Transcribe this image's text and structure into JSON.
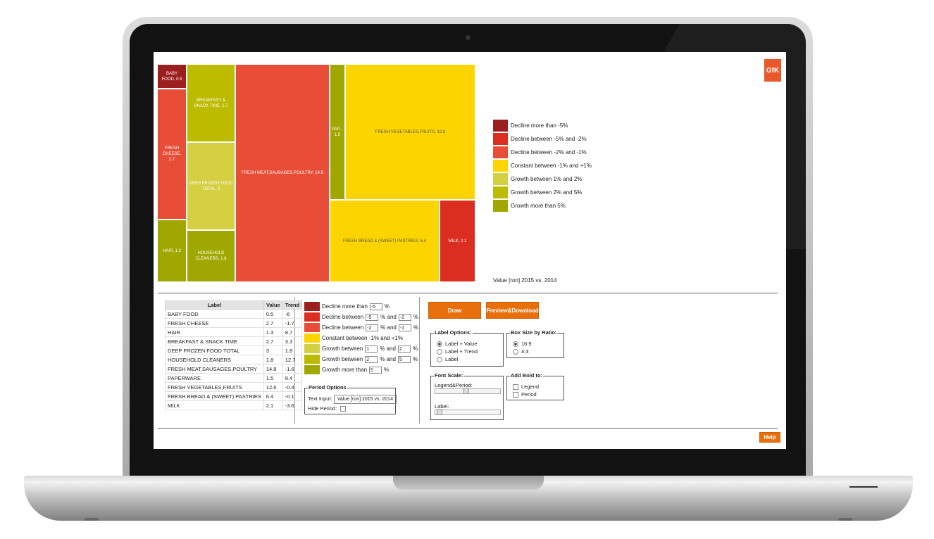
{
  "brand": {
    "logo": "GfK",
    "accent": "#e9582a",
    "button_color": "#e8700c"
  },
  "legend_colors": [
    "#9c1f1f",
    "#dc2e20",
    "#e84d38",
    "#fcd400",
    "#d4d042",
    "#bdbb00",
    "#a0a800"
  ],
  "treemap": {
    "tiles": [
      {
        "label": "BABY FOOD, 0.5",
        "color": "#9c1f1f"
      },
      {
        "label": "FRESH CHEESE, 2.7",
        "color": "#e84d38"
      },
      {
        "label": "HAIR, 1.3",
        "color": "#a0a800"
      },
      {
        "label": "BREAKFAST & SNACK TIME, 2.7",
        "color": "#bdbb00"
      },
      {
        "label": "DEEP FROZEN FOOD TOTAL, 3",
        "color": "#d4d042"
      },
      {
        "label": "HOUSEHOLD CLEANERS, 1.8",
        "color": "#a0a800"
      },
      {
        "label": "FRESH MEAT,SAUSAGES,POULTRY, 14.8",
        "color": "#e84d38"
      },
      {
        "label": "PAP... 1.5",
        "color": "#a0a800"
      },
      {
        "label": "FRESH VEGETABLES,FRUITS, 12.6",
        "color": "#fcd400"
      },
      {
        "label": "FRESH BREAD & (SWEET) PASTRIES, 6.4",
        "color": "#fcd400"
      },
      {
        "label": "MILK, 2.1",
        "color": "#dc2e20"
      }
    ]
  },
  "legend": [
    "Decline more than -5%",
    "Decline between -5% and -2%",
    "Decline between -2% and -1%",
    "Constant between -1% and +1%",
    "Growth between 1% and 2%",
    "Growth between 2% and 5%",
    "Growth more than 5%"
  ],
  "period_label": "Value [ron] 2015 vs. 2014",
  "table": {
    "headers": [
      "Label",
      "Value",
      "Trend"
    ],
    "rows": [
      [
        "BABY FOOD",
        "0.5",
        "-6"
      ],
      [
        "FRESH CHEESE",
        "2.7",
        "-1.7"
      ],
      [
        "HAIR",
        "1.3",
        "8.7"
      ],
      [
        "BREAKFAST & SNACK TIME",
        "2.7",
        "3.3"
      ],
      [
        "DEEP FROZEN FOOD TOTAL",
        "3",
        "1.8"
      ],
      [
        "HOUSEHOLD CLEANERS",
        "1.8",
        "12.7"
      ],
      [
        "FRESH MEAT,SAUSAGES,POULTRY",
        "14.8",
        "-1.6"
      ],
      [
        "PAPERWARE",
        "1.5",
        "8.4"
      ],
      [
        "FRESH VEGETABLES,FRUITS",
        "12.6",
        "-0.4"
      ],
      [
        "FRESH BREAD & (SWEET) PASTRIES",
        "6.4",
        "-0.1"
      ],
      [
        "MILK",
        "2.1",
        "-3.6"
      ]
    ]
  },
  "config": {
    "r0": {
      "text": "Decline more than",
      "v1": "-5",
      "pct": "%"
    },
    "r1": {
      "text": "Decline between",
      "v1": "-5",
      "mid": "% and",
      "v2": "-2",
      "pct": "%"
    },
    "r2": {
      "text": "Decline between",
      "v1": "-2",
      "mid": "% and",
      "v2": "-1",
      "pct": "%"
    },
    "r3": {
      "text": "Constant between -1% and +1%"
    },
    "r4": {
      "text": "Growth between",
      "v1": "1",
      "mid": "% and",
      "v2": "2",
      "pct": "%"
    },
    "r5": {
      "text": "Growth between",
      "v1": "2",
      "mid": "% and",
      "v2": "5",
      "pct": "%"
    },
    "r6": {
      "text": "Growth more than",
      "v1": "5",
      "pct": "%"
    }
  },
  "period_options": {
    "legend": "Period Options",
    "text_input_label": "Text Input:",
    "text_input_value": "Value [ron] 2015 vs. 2014",
    "hide_period_label": "Hide Period:"
  },
  "buttons": {
    "draw": "Draw",
    "preview": "Preview&Download",
    "help": "Help"
  },
  "label_options": {
    "legend": "Label Options:",
    "opt1": "Label + Value",
    "opt2": "Label + Trend",
    "opt3": "Label",
    "selected": "Label + Value"
  },
  "box_size": {
    "legend": "Box Size by Ratio:",
    "opt1": "16:9",
    "opt2": "4:3",
    "selected": "16:9"
  },
  "font_scale": {
    "legend": "Font Scale:",
    "legend_period": "Legend&Period:",
    "label": "Label:"
  },
  "add_bold": {
    "legend": "Add Bold to:",
    "opt1": "Legend",
    "opt2": "Period"
  }
}
